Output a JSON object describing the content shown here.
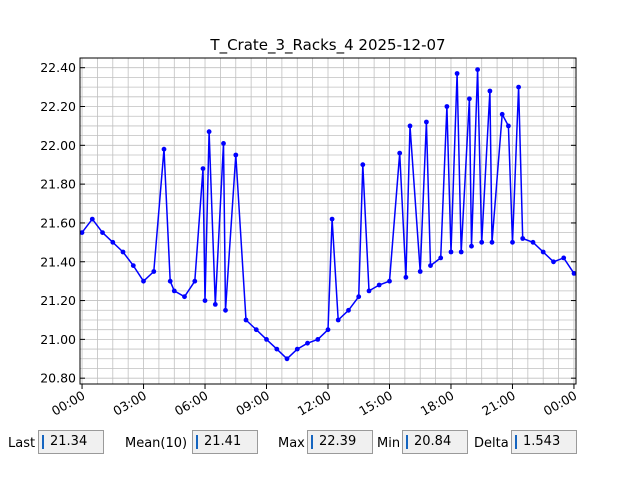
{
  "chart_data": {
    "type": "line",
    "title": "T_Crate_3_Racks_4 2025-12-07",
    "xlabel": "",
    "ylabel": "",
    "x_ticks": [
      "00:00",
      "03:00",
      "06:00",
      "09:00",
      "12:00",
      "15:00",
      "18:00",
      "21:00",
      "00:00"
    ],
    "y_ticks": [
      "20.80",
      "21.00",
      "21.20",
      "21.40",
      "21.60",
      "21.80",
      "22.00",
      "22.20",
      "22.40"
    ],
    "xlim_hours": [
      -0.1,
      24.1
    ],
    "ylim": [
      20.77,
      22.45
    ],
    "grid": true,
    "series": [
      {
        "color": "#0000ff",
        "x_hours": [
          0.0,
          0.5,
          1.0,
          1.5,
          2.0,
          2.5,
          3.0,
          3.5,
          4.0,
          4.3,
          4.5,
          5.0,
          5.5,
          5.9,
          6.0,
          6.2,
          6.5,
          6.9,
          7.0,
          7.5,
          8.0,
          8.5,
          9.0,
          9.5,
          10.0,
          10.5,
          11.0,
          11.5,
          12.0,
          12.2,
          12.5,
          13.0,
          13.5,
          13.7,
          14.0,
          14.5,
          15.0,
          15.5,
          15.8,
          16.0,
          16.5,
          16.8,
          17.0,
          17.5,
          17.8,
          18.0,
          18.3,
          18.5,
          18.9,
          19.0,
          19.3,
          19.5,
          19.9,
          20.0,
          20.5,
          20.8,
          21.0,
          21.3,
          21.5,
          22.0,
          22.5,
          23.0,
          23.5,
          24.0
        ],
        "y": [
          21.55,
          21.62,
          21.55,
          21.5,
          21.45,
          21.38,
          21.3,
          21.35,
          21.98,
          21.3,
          21.25,
          21.22,
          21.3,
          21.88,
          21.2,
          22.07,
          21.18,
          22.01,
          21.15,
          21.95,
          21.1,
          21.05,
          21.0,
          20.95,
          20.9,
          20.95,
          20.98,
          21.0,
          21.05,
          21.62,
          21.1,
          21.15,
          21.22,
          21.9,
          21.25,
          21.28,
          21.3,
          21.96,
          21.32,
          22.1,
          21.35,
          22.12,
          21.38,
          21.42,
          22.2,
          21.45,
          22.37,
          21.45,
          22.24,
          21.48,
          22.39,
          21.5,
          22.28,
          21.5,
          22.16,
          22.1,
          21.5,
          22.3,
          21.52,
          21.5,
          21.45,
          21.4,
          21.42,
          21.34
        ]
      }
    ]
  },
  "stats": {
    "last_label": "Last",
    "last_value": "21.34",
    "mean_label": "Mean(10)",
    "mean_value": "21.41",
    "max_label": "Max",
    "max_value": "22.39",
    "min_label": "Min",
    "min_value": "20.84",
    "delta_label": "Delta",
    "delta_value": "1.543"
  }
}
